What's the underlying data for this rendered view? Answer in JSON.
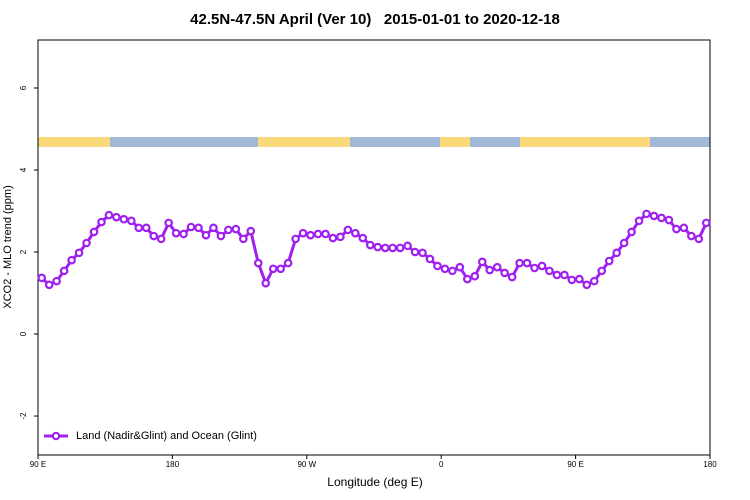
{
  "chart_data": {
    "type": "line",
    "title": "42.5N-47.5N April (Ver 10)   2015-01-01 to 2020-12-18",
    "x_label": "Longitude (deg E)",
    "y_label": "XCO2 - MLO trend (ppm)",
    "xlim": [
      90,
      540
    ],
    "xticks": [
      {
        "value": 90,
        "label": "90 E"
      },
      180,
      {
        "value": 270,
        "label": "90 W"
      },
      {
        "value": 360,
        "label": "0"
      },
      {
        "value": 450,
        "label": "90 E"
      },
      {
        "value": 540,
        "label": "180"
      }
    ],
    "ylim": [
      -2.95,
      7.17
    ],
    "yticks": [
      -2,
      0,
      2,
      4,
      6
    ],
    "legend": "bottom-left",
    "x": [
      92.5,
      97.5,
      102.5,
      107.5,
      112.5,
      117.5,
      122.5,
      127.5,
      132.5,
      137.5,
      142.5,
      147.5,
      152.5,
      157.5,
      162.5,
      167.5,
      172.5,
      177.5,
      182.5,
      187.5,
      192.5,
      197.5,
      202.5,
      207.5,
      212.5,
      217.5,
      222.5,
      227.5,
      232.5,
      237.5,
      242.5,
      247.5,
      252.5,
      257.5,
      262.5,
      267.5,
      272.5,
      277.5,
      282.5,
      287.5,
      292.5,
      297.5,
      302.5,
      307.5,
      312.5,
      317.5,
      322.5,
      327.5,
      332.5,
      337.5,
      342.5,
      347.5,
      352.5,
      357.5,
      362.5,
      367.5,
      372.5,
      377.5,
      382.5,
      387.5,
      392.5,
      397.5,
      402.5,
      407.5,
      412.5,
      417.5,
      422.5,
      427.5,
      432.5,
      437.5,
      442.5,
      447.5,
      452.5,
      457.5,
      462.5,
      467.5,
      472.5,
      477.5,
      482.5,
      487.5,
      492.5,
      497.5,
      502.5,
      507.5,
      512.5,
      517.5,
      522.5,
      527.5,
      532.5,
      537.5
    ],
    "series": [
      {
        "name": "Land (Nadir&Glint) and Ocean (Glint)",
        "color": "#a020f0",
        "values": [
          1.37,
          1.2,
          1.29,
          1.54,
          1.8,
          1.98,
          2.22,
          2.49,
          2.73,
          2.9,
          2.85,
          2.8,
          2.76,
          2.59,
          2.59,
          2.39,
          2.32,
          2.71,
          2.46,
          2.44,
          2.61,
          2.59,
          2.41,
          2.59,
          2.39,
          2.54,
          2.56,
          2.32,
          2.51,
          1.73,
          1.24,
          1.59,
          1.59,
          1.73,
          2.32,
          2.46,
          2.41,
          2.44,
          2.44,
          2.34,
          2.37,
          2.54,
          2.46,
          2.34,
          2.17,
          2.12,
          2.1,
          2.1,
          2.1,
          2.15,
          2.0,
          1.98,
          1.83,
          1.66,
          1.59,
          1.54,
          1.63,
          1.34,
          1.41,
          1.76,
          1.56,
          1.63,
          1.49,
          1.39,
          1.73,
          1.73,
          1.61,
          1.66,
          1.54,
          1.44,
          1.44,
          1.32,
          1.34,
          1.2,
          1.29,
          1.54,
          1.78,
          1.98,
          2.22,
          2.49,
          2.76,
          2.93,
          2.88,
          2.83,
          2.78,
          2.56,
          2.59,
          2.39,
          2.32,
          2.71
        ]
      }
    ]
  }
}
